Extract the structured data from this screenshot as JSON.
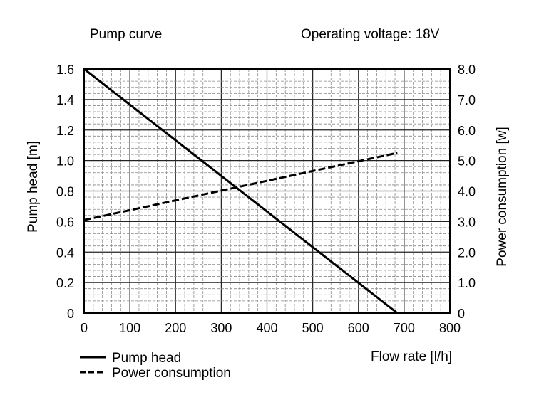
{
  "chart_data": {
    "type": "line",
    "title": "Pump curve",
    "subtitle": "Operating voltage: 18V",
    "xlabel": "Flow rate [l/h]",
    "ylabel": "Pump head [m]",
    "y2label": "Power consumption [w]",
    "xlim": [
      0,
      800
    ],
    "ylim": [
      0,
      1.6
    ],
    "y2lim": [
      0,
      8.0
    ],
    "x_ticks": [
      "0",
      "100",
      "200",
      "300",
      "400",
      "500",
      "600",
      "700",
      "800"
    ],
    "y_ticks": [
      "0",
      "0.2",
      "0.4",
      "0.6",
      "0.8",
      "1.0",
      "1.2",
      "1.4",
      "1.6"
    ],
    "y2_ticks": [
      "0",
      "1.0",
      "2.0",
      "3.0",
      "4.0",
      "5.0",
      "6.0",
      "7.0",
      "8.0"
    ],
    "grid": true,
    "legend_position": "bottom-left",
    "series": [
      {
        "name": "Pump head",
        "axis": "left",
        "style": "solid",
        "x": [
          0,
          685
        ],
        "y": [
          1.6,
          0
        ]
      },
      {
        "name": "Power consumption",
        "axis": "right",
        "style": "dashed",
        "x": [
          0,
          685
        ],
        "y": [
          3.05,
          5.25
        ]
      }
    ]
  }
}
